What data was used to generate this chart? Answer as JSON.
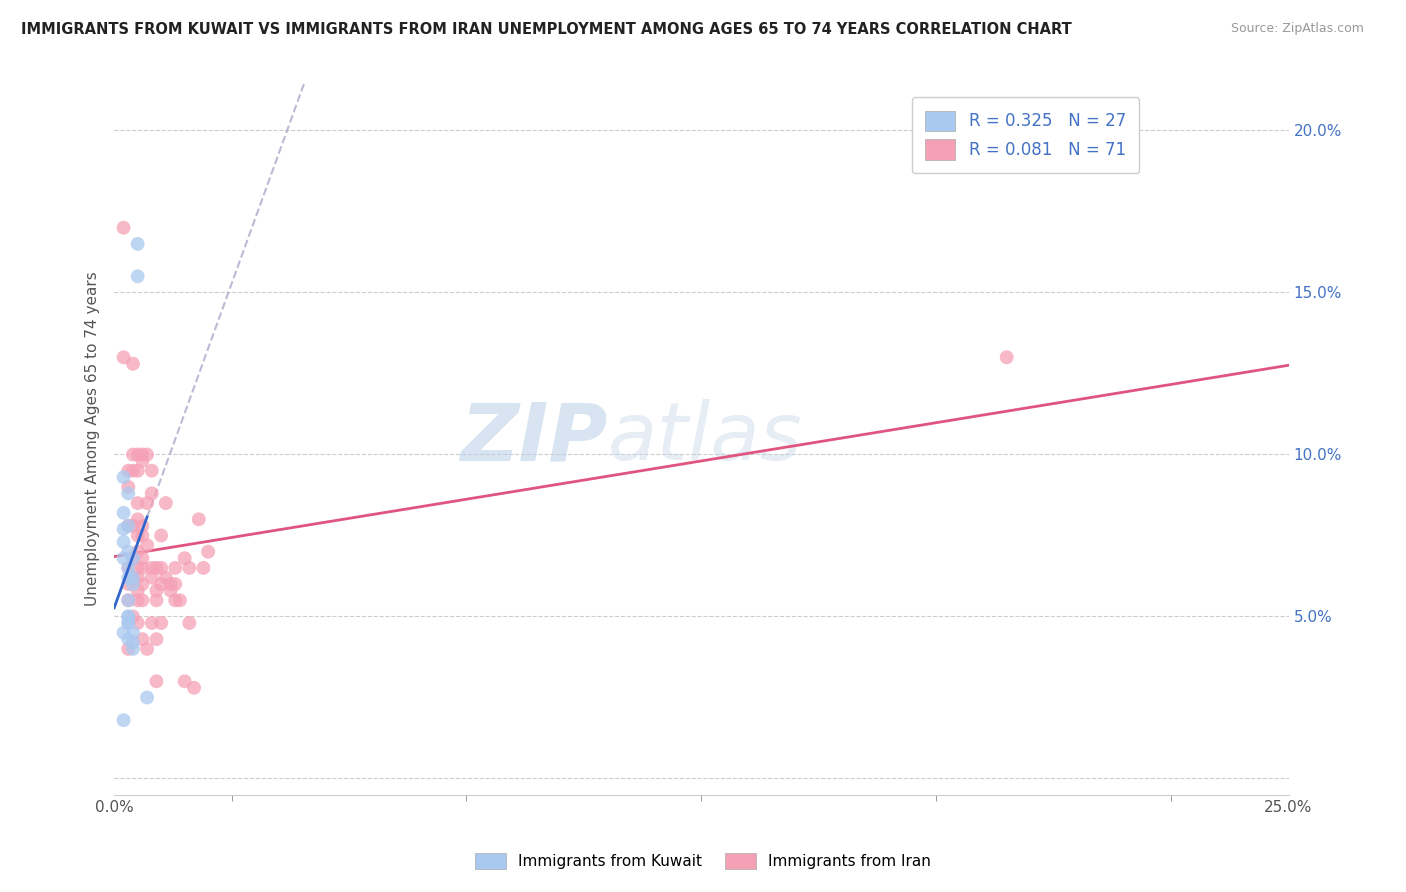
{
  "title": "IMMIGRANTS FROM KUWAIT VS IMMIGRANTS FROM IRAN UNEMPLOYMENT AMONG AGES 65 TO 74 YEARS CORRELATION CHART",
  "source": "Source: ZipAtlas.com",
  "ylabel": "Unemployment Among Ages 65 to 74 years",
  "xlim": [
    0.0,
    0.25
  ],
  "ylim": [
    -0.005,
    0.215
  ],
  "x_ticks": [
    0.0,
    0.05,
    0.1,
    0.15,
    0.2,
    0.25
  ],
  "x_tick_labels": [
    "0.0%",
    "",
    "",
    "",
    "",
    "25.0%"
  ],
  "y_ticks_right": [
    0.0,
    0.05,
    0.1,
    0.15,
    0.2
  ],
  "y_tick_labels_right": [
    "",
    "5.0%",
    "10.0%",
    "15.0%",
    "20.0%"
  ],
  "kuwait_R": 0.325,
  "kuwait_N": 27,
  "iran_R": 0.081,
  "iran_N": 71,
  "kuwait_color": "#aac9f0",
  "iran_color": "#f5a0b5",
  "kuwait_line_color": "#3366cc",
  "iran_line_color": "#e05580",
  "legend_label_kuwait": "Immigrants from Kuwait",
  "legend_label_iran": "Immigrants from Iran",
  "watermark_zip": "ZIP",
  "watermark_atlas": "atlas",
  "kuwait_x": [
    0.002,
    0.002,
    0.002,
    0.002,
    0.002,
    0.002,
    0.002,
    0.003,
    0.003,
    0.003,
    0.003,
    0.003,
    0.003,
    0.003,
    0.003,
    0.003,
    0.003,
    0.003,
    0.004,
    0.004,
    0.004,
    0.004,
    0.004,
    0.004,
    0.005,
    0.005,
    0.007
  ],
  "kuwait_y": [
    0.018,
    0.045,
    0.068,
    0.073,
    0.077,
    0.082,
    0.093,
    0.043,
    0.048,
    0.05,
    0.055,
    0.062,
    0.065,
    0.07,
    0.078,
    0.088,
    0.05,
    0.048,
    0.04,
    0.042,
    0.045,
    0.06,
    0.062,
    0.068,
    0.155,
    0.165,
    0.025
  ],
  "iran_x": [
    0.002,
    0.002,
    0.003,
    0.003,
    0.003,
    0.003,
    0.003,
    0.003,
    0.003,
    0.004,
    0.004,
    0.004,
    0.004,
    0.004,
    0.004,
    0.004,
    0.005,
    0.005,
    0.005,
    0.005,
    0.005,
    0.005,
    0.005,
    0.005,
    0.005,
    0.005,
    0.005,
    0.006,
    0.006,
    0.006,
    0.006,
    0.006,
    0.006,
    0.006,
    0.006,
    0.006,
    0.007,
    0.007,
    0.007,
    0.007,
    0.008,
    0.008,
    0.008,
    0.008,
    0.008,
    0.009,
    0.009,
    0.009,
    0.009,
    0.009,
    0.01,
    0.01,
    0.01,
    0.01,
    0.011,
    0.011,
    0.012,
    0.012,
    0.013,
    0.013,
    0.013,
    0.014,
    0.015,
    0.015,
    0.016,
    0.016,
    0.017,
    0.018,
    0.019,
    0.02,
    0.19
  ],
  "iran_y": [
    0.17,
    0.13,
    0.095,
    0.09,
    0.078,
    0.065,
    0.06,
    0.055,
    0.04,
    0.128,
    0.1,
    0.095,
    0.078,
    0.068,
    0.062,
    0.05,
    0.1,
    0.095,
    0.085,
    0.08,
    0.075,
    0.07,
    0.065,
    0.062,
    0.058,
    0.055,
    0.048,
    0.1,
    0.098,
    0.078,
    0.075,
    0.068,
    0.065,
    0.06,
    0.055,
    0.043,
    0.1,
    0.085,
    0.072,
    0.04,
    0.095,
    0.088,
    0.065,
    0.062,
    0.048,
    0.065,
    0.058,
    0.055,
    0.043,
    0.03,
    0.075,
    0.065,
    0.06,
    0.048,
    0.085,
    0.062,
    0.06,
    0.058,
    0.065,
    0.06,
    0.055,
    0.055,
    0.068,
    0.03,
    0.065,
    0.048,
    0.028,
    0.08,
    0.065,
    0.07,
    0.13
  ]
}
